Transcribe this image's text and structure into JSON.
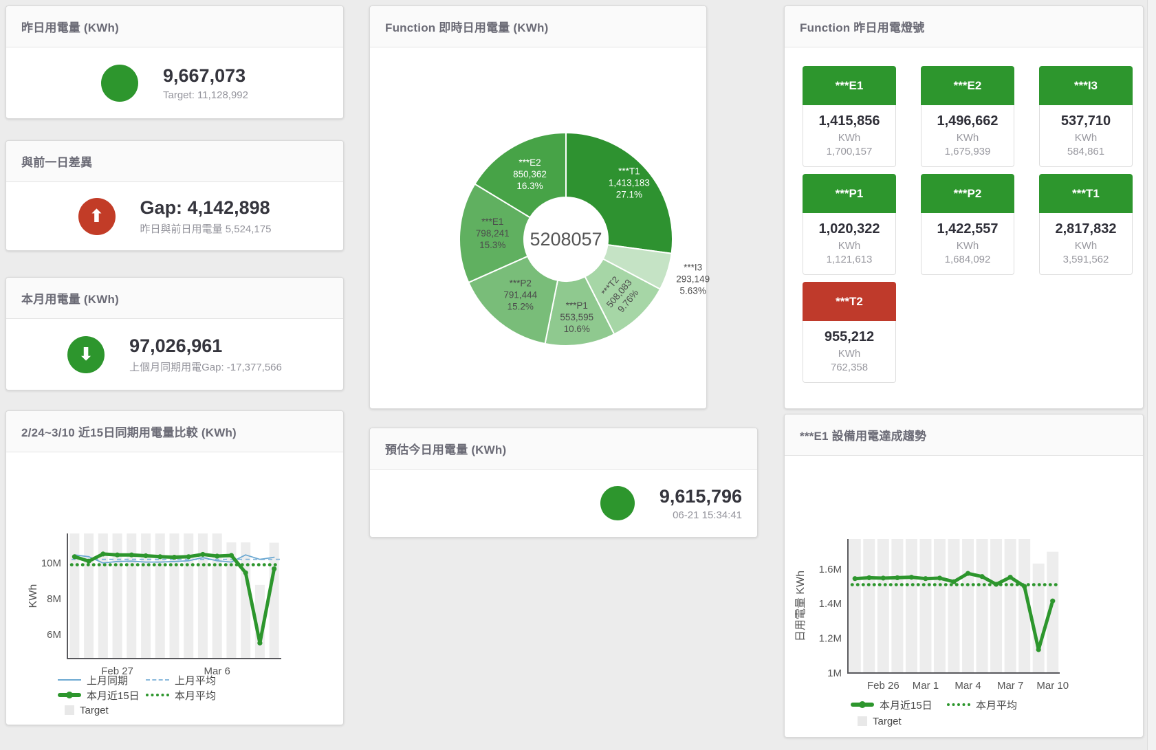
{
  "colors": {
    "green": "#2d962d",
    "red": "#bf3a2b",
    "blue": "#6da9d2",
    "bar": "#ededed"
  },
  "cards": {
    "yesterday": {
      "title": "昨日用電量 (KWh)",
      "value": "9,667,073",
      "subtitle": "Target: 11,128,992"
    },
    "diff": {
      "title": "與前一日差異",
      "value": "Gap: 4,142,898",
      "subtitle": "昨日與前日用電量 5,524,175",
      "arrow": "⬆"
    },
    "month": {
      "title": "本月用電量 (KWh)",
      "value": "97,026,961",
      "subtitle": "上個月同期用電Gap: -17,377,566",
      "arrow": "⬇"
    },
    "estimate": {
      "title": "預估今日用電量 (KWh)",
      "value": "9,615,796",
      "subtitle": "06-21 15:34:41"
    }
  },
  "lights": {
    "title": "Function 昨日用電燈號",
    "unit": "KWh",
    "tiles": [
      {
        "name": "***E1",
        "value": "1,415,856",
        "target": "1,700,157",
        "status": "green"
      },
      {
        "name": "***E2",
        "value": "1,496,662",
        "target": "1,675,939",
        "status": "green"
      },
      {
        "name": "***I3",
        "value": "537,710",
        "target": "584,861",
        "status": "green"
      },
      {
        "name": "***P1",
        "value": "1,020,322",
        "target": "1,121,613",
        "status": "green"
      },
      {
        "name": "***P2",
        "value": "1,422,557",
        "target": "1,684,092",
        "status": "green"
      },
      {
        "name": "***T1",
        "value": "2,817,832",
        "target": "3,591,562",
        "status": "green"
      },
      {
        "name": "***T2",
        "value": "955,212",
        "target": "762,358",
        "status": "red"
      }
    ]
  },
  "chart_data": [
    {
      "type": "pie",
      "title": "Function 即時日用電量 (KWh)",
      "center_total": "5208057",
      "slices": [
        {
          "name": "***T1",
          "value": 1413183,
          "display": "1,413,183",
          "pct": "27.1%",
          "color": "#2e9230"
        },
        {
          "name": "***I3",
          "value": 293149,
          "display": "293,149",
          "pct": "5.63%",
          "color": "#c5e3c5"
        },
        {
          "name": "***T2",
          "value": 508083,
          "display": "508,083",
          "pct": "9.76%",
          "color": "#a6d6a6"
        },
        {
          "name": "***P1",
          "value": 553595,
          "display": "553,595",
          "pct": "10.6%",
          "color": "#8fc98f"
        },
        {
          "name": "***P2",
          "value": 791444,
          "display": "791,444",
          "pct": "15.2%",
          "color": "#79bd79"
        },
        {
          "name": "***E1",
          "value": 798241,
          "display": "798,241",
          "pct": "15.3%",
          "color": "#60b060"
        },
        {
          "name": "***E2",
          "value": 850362,
          "display": "850,362",
          "pct": "16.3%",
          "color": "#47a347"
        }
      ]
    },
    {
      "type": "line+bar",
      "title": "2/24~3/10 近15日同期用電量比較 (KWh)",
      "ylabel": "KWh",
      "unit": "M KWh",
      "n": 15,
      "x_start": "Feb 24",
      "x_end": "Mar 10",
      "ylim": [
        4.65,
        11.65
      ],
      "yticks": [
        {
          "v": 6,
          "t": "6M"
        },
        {
          "v": 8,
          "t": "8M"
        },
        {
          "v": 10,
          "t": "10M"
        }
      ],
      "xticks": [
        {
          "i": 3,
          "t": "Feb 27"
        },
        {
          "i": 10,
          "t": "Mar 6"
        }
      ],
      "series": [
        {
          "name": "上月同期",
          "kind": "line",
          "color": "#6da9d2",
          "width": 1.8,
          "values": [
            10.45,
            10.35,
            10.0,
            10.08,
            10.1,
            10.05,
            10.05,
            10.08,
            10.12,
            10.3,
            10.12,
            10.05,
            10.45,
            10.2,
            10.32
          ]
        },
        {
          "name": "上月平均",
          "kind": "avg",
          "style": "dashed",
          "color": "#8ab9dc",
          "value": 10.2
        },
        {
          "name": "本月近15日",
          "kind": "line",
          "color": "#2d962d",
          "width": 5,
          "dots": true,
          "values": [
            10.35,
            10.1,
            10.5,
            10.45,
            10.45,
            10.4,
            10.35,
            10.32,
            10.35,
            10.48,
            10.38,
            10.42,
            9.45,
            5.52,
            9.67
          ]
        },
        {
          "name": "本月平均",
          "kind": "avg",
          "style": "dotted",
          "color": "#2d962d",
          "value": 9.9
        },
        {
          "name": "Target",
          "kind": "bar",
          "color": "#ededed",
          "values": [
            11.65,
            11.65,
            11.65,
            11.65,
            11.65,
            11.65,
            11.65,
            11.65,
            11.65,
            11.65,
            11.65,
            11.15,
            11.15,
            8.77,
            11.13
          ]
        }
      ]
    },
    {
      "type": "line+bar",
      "title": "***E1 設備用電達成趨勢",
      "ylabel": "日用電量 KWh",
      "unit": "M KWh",
      "n": 15,
      "x_start": "Feb 24",
      "x_end": "Mar 10",
      "ylim": [
        1.0,
        1.774
      ],
      "yticks": [
        {
          "v": 1,
          "t": "1M"
        },
        {
          "v": 1.2,
          "t": "1.2M"
        },
        {
          "v": 1.4,
          "t": "1.4M"
        },
        {
          "v": 1.6,
          "t": "1.6M"
        }
      ],
      "xticks": [
        {
          "i": 2,
          "t": "Feb 26"
        },
        {
          "i": 5,
          "t": "Mar 1"
        },
        {
          "i": 8,
          "t": "Mar 4"
        },
        {
          "i": 11,
          "t": "Mar 7"
        },
        {
          "i": 14,
          "t": "Mar 10"
        }
      ],
      "series": [
        {
          "name": "本月近15日",
          "kind": "line",
          "color": "#2d962d",
          "width": 5,
          "dots": true,
          "values": [
            1.545,
            1.55,
            1.548,
            1.55,
            1.553,
            1.545,
            1.548,
            1.527,
            1.575,
            1.557,
            1.512,
            1.553,
            1.5,
            1.135,
            1.416
          ]
        },
        {
          "name": "本月平均",
          "kind": "avg",
          "style": "dotted",
          "color": "#2d962d",
          "value": 1.51
        },
        {
          "name": "Target",
          "kind": "bar",
          "color": "#ededed",
          "values": [
            1.774,
            1.774,
            1.774,
            1.774,
            1.774,
            1.774,
            1.774,
            1.774,
            1.774,
            1.774,
            1.774,
            1.774,
            1.774,
            1.632,
            1.7
          ]
        }
      ]
    }
  ]
}
